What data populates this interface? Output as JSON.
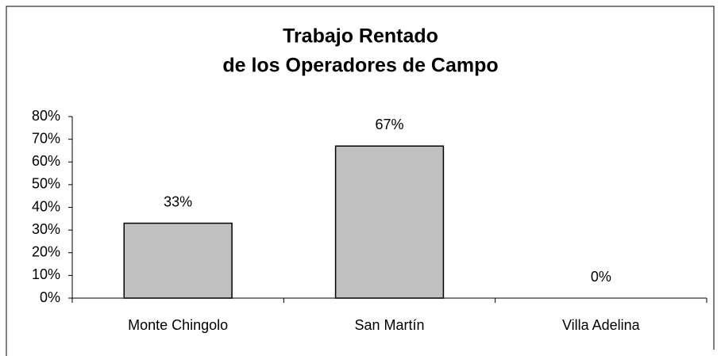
{
  "chart_data": {
    "type": "bar",
    "title": [
      "Trabajo Rentado",
      "de los Operadores de Campo"
    ],
    "categories": [
      "Monte Chingolo",
      "San Martín",
      "Villa Adelina"
    ],
    "values": [
      33,
      67,
      0
    ],
    "value_labels": [
      "33%",
      "67%",
      "0%"
    ],
    "color": "#c0c0c0",
    "ylim": [
      0,
      80
    ],
    "yticks": [
      {
        "value": 0,
        "label": "0%"
      },
      {
        "value": 10,
        "label": "10%"
      },
      {
        "value": 20,
        "label": "20%"
      },
      {
        "value": 30,
        "label": "30%"
      },
      {
        "value": 40,
        "label": "40%"
      },
      {
        "value": 50,
        "label": "50%"
      },
      {
        "value": 60,
        "label": "60%"
      },
      {
        "value": 70,
        "label": "70%"
      },
      {
        "value": 80,
        "label": "80%"
      }
    ]
  }
}
